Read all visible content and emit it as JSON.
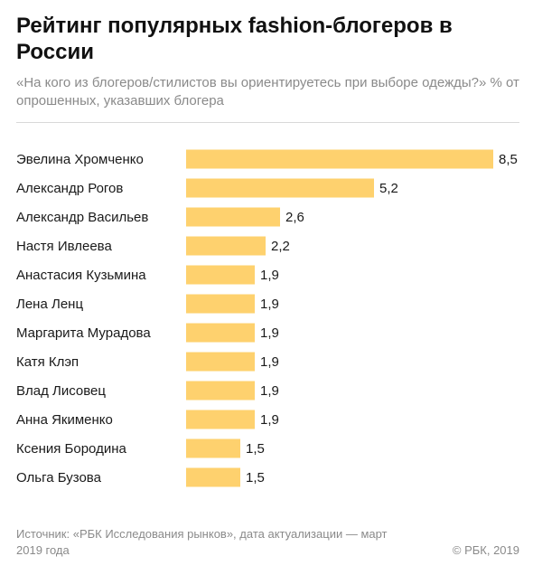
{
  "title": "Рейтинг популярных fashion-блогеров в России",
  "subtitle": "«На кого из блогеров/стилистов вы ориентируетесь при выборе одежды?» % от опрошенных, указавших блогера",
  "source": "Источник: «РБК Исследования рынков», дата актуализации — март 2019 года",
  "copyright": "© РБК, 2019",
  "colors": {
    "bar": "#fed16e",
    "text": "#1a1a1a",
    "muted": "#8a8a8a"
  },
  "chart_data": {
    "type": "bar",
    "orientation": "horizontal",
    "title": "Рейтинг популярных fashion-блогеров в России",
    "categories": [
      "Эвелина Хромченко",
      "Александр Рогов",
      "Александр Васильев",
      "Настя Ивлеева",
      "Анастасия Кузьмина",
      "Лена Ленц",
      "Маргарита Мурадова",
      "Катя Клэп",
      "Влад Лисовец",
      "Анна Якименко",
      "Ксения Бородина",
      "Ольга Бузова"
    ],
    "values": [
      8.5,
      5.2,
      2.6,
      2.2,
      1.9,
      1.9,
      1.9,
      1.9,
      1.9,
      1.9,
      1.5,
      1.5
    ],
    "value_labels": [
      "8,5",
      "5,2",
      "2,6",
      "2,2",
      "1,9",
      "1,9",
      "1,9",
      "1,9",
      "1,9",
      "1,9",
      "1,5",
      "1,5"
    ],
    "xlim": [
      0,
      8.5
    ],
    "grid": false,
    "legend": "none"
  }
}
